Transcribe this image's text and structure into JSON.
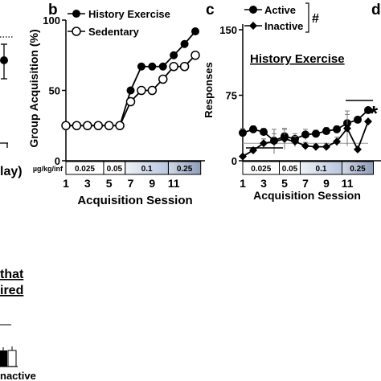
{
  "panel_a_partial": {
    "xlabel_fragment": "lay)"
  },
  "panel_b": {
    "letter": "b",
    "ylabel": "Group Acquisition (%)",
    "xlabel": "Acquisition Session",
    "yticks": [
      0,
      50,
      100
    ],
    "xticks": [
      1,
      3,
      5,
      7,
      9,
      11
    ],
    "dose_label": "µg/kg/inf",
    "doses": [
      "0.025",
      "0.05",
      "0.1",
      "0.25"
    ],
    "legend": [
      "History Exercise",
      "Sedentary"
    ]
  },
  "panel_c": {
    "letter": "c",
    "ylabel": "Responses",
    "xlabel": "Acquisition Session",
    "title": "History Exercise",
    "yticks": [
      0,
      75,
      150
    ],
    "xticks": [
      1,
      3,
      5,
      7,
      9,
      11
    ],
    "doses": [
      "0.025",
      "0.05",
      "0.1",
      "0.25"
    ],
    "legend": [
      "Active",
      "Inactive"
    ],
    "legend_mark": "#",
    "sig_mark": "*"
  },
  "panel_d": {
    "letter": "d"
  },
  "bottom_left_fragments": [
    "that",
    "ired",
    "nactive"
  ],
  "chart_data": [
    {
      "type": "line",
      "panel": "b",
      "x": [
        1,
        2,
        3,
        4,
        5,
        6,
        7,
        8,
        9,
        10,
        11,
        12,
        13
      ],
      "series": [
        {
          "name": "History Exercise",
          "values": [
            25,
            25,
            25,
            25,
            25,
            25,
            50,
            67,
            67,
            67,
            75,
            83,
            92
          ]
        },
        {
          "name": "Sedentary",
          "values": [
            25,
            25,
            25,
            25,
            25,
            25,
            42,
            50,
            50,
            58,
            67,
            67,
            75
          ]
        }
      ],
      "xlabel": "Acquisition Session",
      "ylabel": "Group Acquisition (%)",
      "ylim": [
        0,
        100
      ],
      "xlim": [
        1,
        13
      ]
    },
    {
      "type": "line",
      "panel": "c",
      "title": "History Exercise",
      "x": [
        1,
        2,
        3,
        4,
        5,
        6,
        7,
        8,
        9,
        10,
        11,
        12,
        13
      ],
      "series": [
        {
          "name": "Active",
          "values": [
            32,
            36,
            33,
            23,
            28,
            25,
            30,
            31,
            34,
            36,
            43,
            47,
            58
          ],
          "errors": [
            5,
            4,
            4,
            8,
            8,
            6,
            6,
            4,
            4,
            4,
            10,
            0,
            0
          ]
        },
        {
          "name": "Inactive",
          "values": [
            5,
            12,
            20,
            22,
            25,
            22,
            17,
            16,
            16,
            22,
            37,
            13,
            45
          ],
          "errors": [
            0,
            3,
            5,
            14,
            12,
            6,
            4,
            3,
            4,
            5,
            20,
            0,
            0
          ]
        }
      ],
      "xlabel": "Acquisition Session",
      "ylabel": "Responses",
      "ylim": [
        0,
        150
      ],
      "xlim": [
        1,
        13
      ]
    }
  ]
}
